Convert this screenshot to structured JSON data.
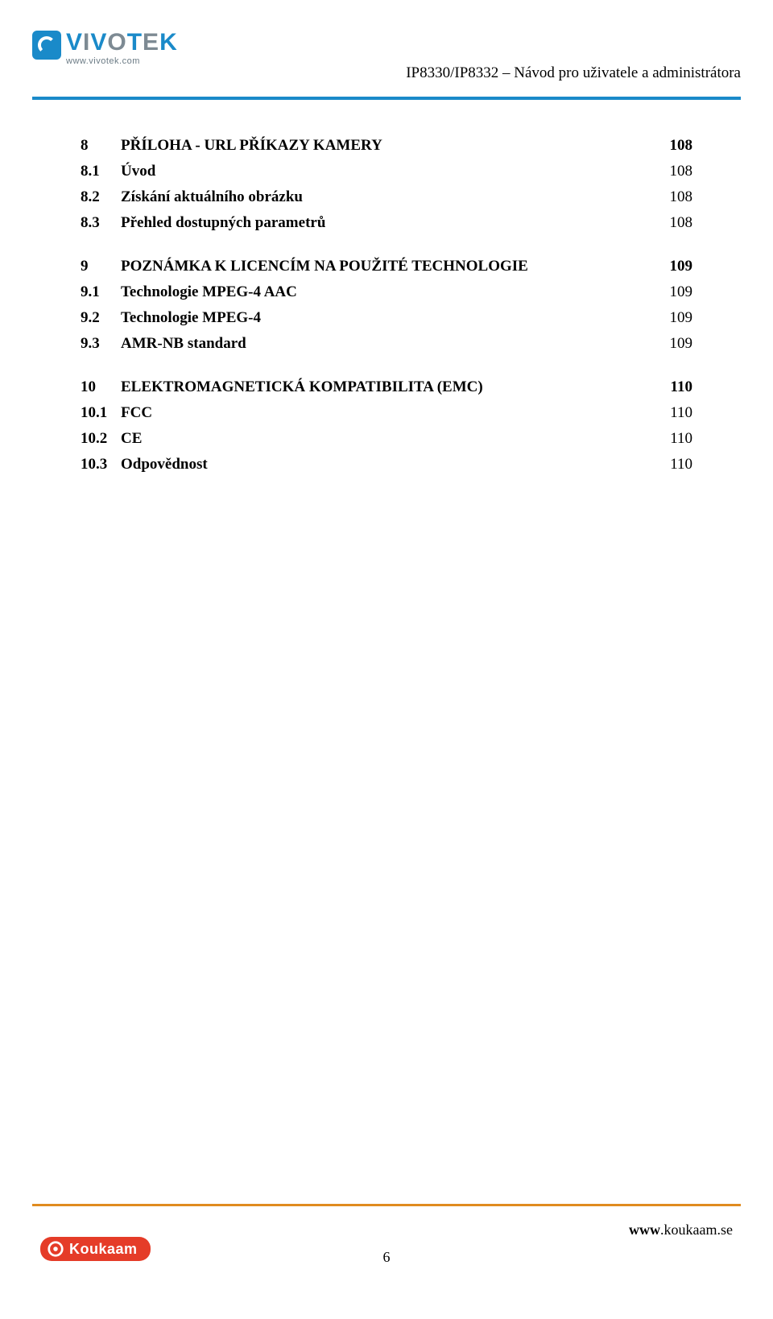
{
  "header": {
    "logo_word_parts": [
      {
        "text": "V",
        "class": "lw-blue"
      },
      {
        "text": "I",
        "class": "lw-gray"
      },
      {
        "text": "V",
        "class": "lw-blue"
      },
      {
        "text": "O",
        "class": "lw-gray"
      },
      {
        "text": "T",
        "class": "lw-blue"
      },
      {
        "text": "E",
        "class": "lw-gray"
      },
      {
        "text": "K",
        "class": "lw-blue"
      }
    ],
    "logo_url": "www.vivotek.com",
    "doc_subtitle": "IP8330/IP8332 – Návod pro uživatele a administrátora"
  },
  "toc": {
    "sections": [
      {
        "num": "8",
        "title": "PŘÍLOHA - URL PŘÍKAZY KAMERY",
        "page": "108",
        "subs": [
          {
            "num": "8.1",
            "title": "Úvod",
            "page": "108"
          },
          {
            "num": "8.2",
            "title": "Získání aktuálního obrázku",
            "page": "108"
          },
          {
            "num": "8.3",
            "title": "Přehled dostupných parametrů",
            "page": "108"
          }
        ]
      },
      {
        "num": "9",
        "title": "POZNÁMKA K LICENCÍM NA POUŽITÉ TECHNOLOGIE",
        "page": "109",
        "subs": [
          {
            "num": "9.1",
            "title": "Technologie MPEG-4 AAC",
            "page": "109"
          },
          {
            "num": "9.2",
            "title": "Technologie MPEG-4",
            "page": "109"
          },
          {
            "num": "9.3",
            "title": "AMR-NB standard",
            "page": "109"
          }
        ]
      },
      {
        "num": "10",
        "title": "ELEKTROMAGNETICKÁ KOMPATIBILITA (EMC)",
        "page": "110",
        "subs": [
          {
            "num": "10.1",
            "title": "FCC",
            "page": "110"
          },
          {
            "num": "10.2",
            "title": "CE",
            "page": "110"
          },
          {
            "num": "10.3",
            "title": "Odpovědnost",
            "page": "110"
          }
        ]
      }
    ]
  },
  "footer": {
    "brand": "Koukaam",
    "url_prefix": "www",
    "url_rest": ".koukaam.se",
    "page_number": "6"
  },
  "colors": {
    "header_rule": "#1a8ac9",
    "footer_rule": "#e08b1f",
    "badge_bg": "#e53c28"
  }
}
